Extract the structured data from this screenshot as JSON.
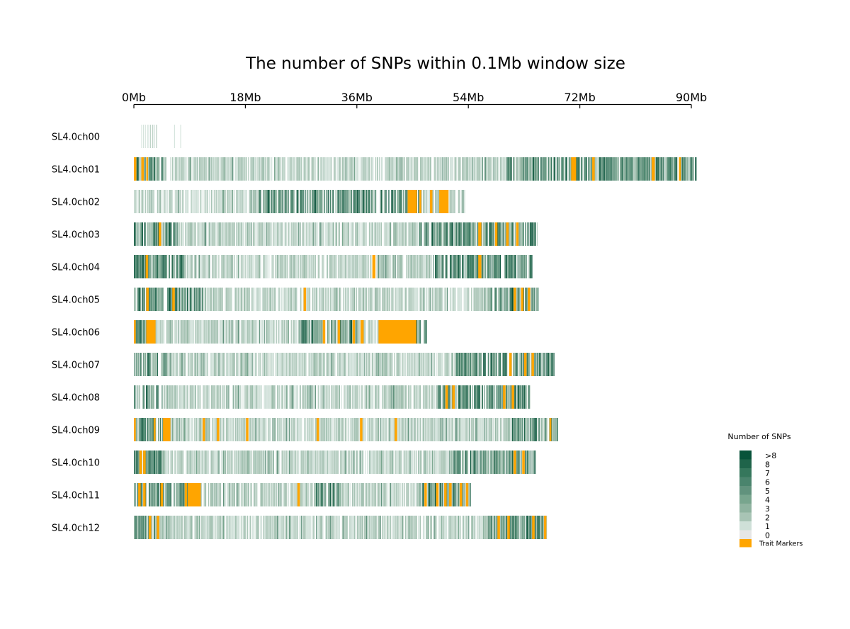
{
  "chart_data": {
    "type": "heatmap",
    "title": "The number of SNPs within 0.1Mb window size",
    "x_axis": {
      "unit": "Mb",
      "range": [
        0,
        90
      ],
      "ticks": [
        0,
        18,
        36,
        54,
        72,
        90
      ],
      "tick_labels": [
        "0Mb",
        "18Mb",
        "36Mb",
        "54Mb",
        "72Mb",
        "90Mb"
      ],
      "position": "top"
    },
    "window_size_mb": 0.1,
    "chromosomes": [
      {
        "name": "SL4.0ch00",
        "length_mb": 9.0,
        "seed": 11,
        "density": 0.2,
        "profile": "sparse",
        "segments": [
          [
            1.2,
            1.3
          ],
          [
            1.5,
            1.6
          ],
          [
            1.8,
            1.9
          ],
          [
            2.2,
            2.35
          ],
          [
            2.6,
            2.7
          ],
          [
            3.0,
            3.1
          ],
          [
            3.3,
            3.4
          ],
          [
            3.6,
            3.7
          ],
          [
            6.5,
            6.6
          ],
          [
            7.5,
            7.6
          ]
        ],
        "hotspots": [],
        "markers": []
      },
      {
        "name": "SL4.0ch01",
        "length_mb": 90.8,
        "seed": 101,
        "density": 0.85,
        "profile": "ends",
        "hotspots": [
          [
            0,
            4.5
          ],
          [
            60,
            90.8
          ]
        ],
        "markers": [
          [
            0,
            0.4
          ],
          [
            1.2,
            1.6
          ],
          [
            2.0,
            2.3
          ],
          [
            70.6,
            71.4
          ],
          [
            74.0,
            74.4
          ],
          [
            83.6,
            84.1
          ],
          [
            88.0,
            88.3
          ]
        ]
      },
      {
        "name": "SL4.0ch02",
        "length_mb": 53.4,
        "seed": 202,
        "density": 0.75,
        "profile": "right",
        "hotspots": [
          [
            20,
            46
          ]
        ],
        "markers": [
          [
            44.2,
            45.7
          ],
          [
            46.1,
            46.4
          ],
          [
            47.8,
            48.2
          ],
          [
            49.3,
            50.8
          ]
        ]
      },
      {
        "name": "SL4.0ch03",
        "length_mb": 65.2,
        "seed": 303,
        "density": 0.85,
        "profile": "ends",
        "hotspots": [
          [
            0,
            7
          ],
          [
            46,
            65
          ]
        ],
        "markers": [
          [
            4.0,
            4.4
          ],
          [
            55.6,
            56.1
          ],
          [
            58.3,
            58.7
          ],
          [
            60.1,
            60.5
          ],
          [
            61.7,
            62.1
          ]
        ]
      },
      {
        "name": "SL4.0ch04",
        "length_mb": 64.4,
        "seed": 404,
        "density": 0.85,
        "profile": "ends",
        "hotspots": [
          [
            0,
            8
          ],
          [
            48,
            64.4
          ]
        ],
        "markers": [
          [
            1.9,
            2.3
          ],
          [
            38.5,
            39.0
          ],
          [
            55.6,
            56.1
          ]
        ]
      },
      {
        "name": "SL4.0ch05",
        "length_mb": 65.3,
        "seed": 505,
        "density": 0.85,
        "profile": "ends",
        "hotspots": [
          [
            0,
            11
          ],
          [
            57,
            65.3
          ]
        ],
        "markers": [
          [
            2.0,
            2.4
          ],
          [
            6.2,
            6.6
          ],
          [
            27.4,
            27.8
          ],
          [
            61.3,
            61.7
          ],
          [
            62.5,
            62.9
          ],
          [
            63.6,
            64.0
          ]
        ]
      },
      {
        "name": "SL4.0ch06",
        "length_mb": 47.3,
        "seed": 606,
        "density": 0.85,
        "profile": "ends",
        "hotspots": [
          [
            0,
            3.5
          ],
          [
            27,
            36
          ],
          [
            45.5,
            47.3
          ]
        ],
        "markers": [
          [
            0,
            0.3
          ],
          [
            2.0,
            3.5
          ],
          [
            30.5,
            30.9
          ],
          [
            32.9,
            33.3
          ],
          [
            35.3,
            35.7
          ],
          [
            36.6,
            37.1
          ],
          [
            39.5,
            45.6
          ]
        ]
      },
      {
        "name": "SL4.0ch07",
        "length_mb": 67.9,
        "seed": 707,
        "density": 0.85,
        "profile": "ends",
        "hotspots": [
          [
            0,
            5
          ],
          [
            52,
            67.9
          ]
        ],
        "markers": [
          [
            60.6,
            61.0
          ],
          [
            63.0,
            63.4
          ],
          [
            64.2,
            64.6
          ]
        ]
      },
      {
        "name": "SL4.0ch08",
        "length_mb": 64.0,
        "seed": 808,
        "density": 0.85,
        "profile": "ends",
        "hotspots": [
          [
            0,
            4.5
          ],
          [
            49,
            64
          ]
        ],
        "markers": [
          [
            50.3,
            50.7
          ],
          [
            51.4,
            51.8
          ],
          [
            59.6,
            60.0
          ],
          [
            61.0,
            61.4
          ]
        ]
      },
      {
        "name": "SL4.0ch09",
        "length_mb": 68.5,
        "seed": 909,
        "density": 0.85,
        "profile": "ends",
        "hotspots": [
          [
            0,
            6
          ],
          [
            61,
            68.5
          ]
        ],
        "markers": [
          [
            0,
            0.3
          ],
          [
            3.2,
            3.5
          ],
          [
            4.7,
            5.9
          ],
          [
            11.1,
            11.5
          ],
          [
            13.4,
            13.8
          ],
          [
            18.1,
            18.5
          ],
          [
            29.5,
            29.9
          ],
          [
            36.5,
            36.9
          ],
          [
            42.1,
            42.5
          ],
          [
            67.1,
            67.4
          ]
        ]
      },
      {
        "name": "SL4.0ch10",
        "length_mb": 64.8,
        "seed": 1010,
        "density": 0.85,
        "profile": "ends",
        "hotspots": [
          [
            0,
            5
          ],
          [
            51,
            64.8
          ]
        ],
        "markers": [
          [
            0.9,
            1.3
          ],
          [
            1.5,
            1.9
          ],
          [
            61.3,
            61.7
          ],
          [
            62.7,
            63.1
          ]
        ]
      },
      {
        "name": "SL4.0ch11",
        "length_mb": 54.4,
        "seed": 1111,
        "density": 0.8,
        "profile": "ends",
        "hotspots": [
          [
            0,
            10.5
          ],
          [
            29,
            33
          ],
          [
            46,
            54.4
          ]
        ],
        "markers": [
          [
            0.7,
            1.1
          ],
          [
            1.5,
            1.9
          ],
          [
            4.3,
            4.7
          ],
          [
            8.2,
            8.6
          ],
          [
            8.7,
            10.8
          ],
          [
            26.4,
            26.8
          ],
          [
            46.9,
            47.3
          ],
          [
            48.8,
            49.2
          ],
          [
            50.1,
            50.5
          ],
          [
            50.9,
            51.3
          ],
          [
            52.6,
            53.0
          ],
          [
            53.6,
            54.0
          ]
        ]
      },
      {
        "name": "SL4.0ch12",
        "length_mb": 66.7,
        "seed": 1212,
        "density": 0.85,
        "profile": "ends",
        "hotspots": [
          [
            0,
            4
          ],
          [
            57,
            66.7
          ]
        ],
        "markers": [
          [
            2.4,
            2.8
          ],
          [
            3.7,
            4.1
          ],
          [
            58.7,
            59.1
          ],
          [
            60.3,
            60.7
          ],
          [
            64.3,
            64.7
          ],
          [
            66.2,
            66.6
          ]
        ]
      }
    ],
    "legend": {
      "title": "Number of SNPs",
      "entries": [
        {
          "label": ">8",
          "color": "#08533a"
        },
        {
          "label": "8",
          "color": "#1f644a"
        },
        {
          "label": "7",
          "color": "#35775c"
        },
        {
          "label": "6",
          "color": "#4a846d"
        },
        {
          "label": "5",
          "color": "#61927d"
        },
        {
          "label": "4",
          "color": "#78a58e"
        },
        {
          "label": "3",
          "color": "#8fb3a0"
        },
        {
          "label": "2",
          "color": "#a8c4b5"
        },
        {
          "label": "1",
          "color": "#cfe0d8"
        },
        {
          "label": "0",
          "color": "#e6e6e6"
        }
      ],
      "marker_entry": {
        "label": "Trait Markers",
        "color": "#ffa500"
      },
      "position": "bottom-right"
    }
  }
}
